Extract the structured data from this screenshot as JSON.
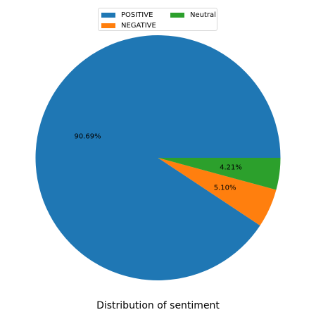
{
  "chart_data": {
    "type": "pie",
    "xlabel": "Distribution of sentiment",
    "legend_position": "top-center",
    "slices": [
      {
        "name": "POSITIVE",
        "value": 90.69,
        "label": "90.69%",
        "color": "#1f77b4"
      },
      {
        "name": "NEGATIVE",
        "value": 5.1,
        "label": "5.10%",
        "color": "#ff7f0e"
      },
      {
        "name": "Neutral",
        "value": 4.21,
        "label": "4.21%",
        "color": "#2ca02c"
      }
    ]
  }
}
